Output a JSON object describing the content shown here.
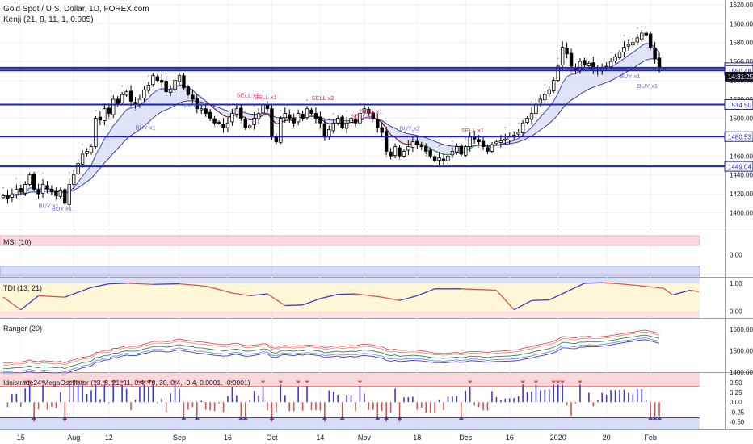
{
  "header": {
    "symbol": "Gold Spot / U.S. Dollar, 1D, FOREX.com",
    "indicator": "Kenji (21, 8, 11, 1, 0.005)"
  },
  "colors": {
    "up": "#ffffff",
    "down": "#000000",
    "level": "#1f1fbf",
    "buy": "#6b6bd6",
    "sell": "#e0306a",
    "fill": "#c9d3f2"
  },
  "chart_data": [
    {
      "type": "candlestick",
      "name": "price",
      "ylim": [
        1380,
        1625
      ],
      "yticks": [
        1400,
        1420,
        1440,
        1460,
        1480,
        1500,
        1520,
        1540,
        1560,
        1580,
        1600,
        1620
      ],
      "x_ticks": [
        {
          "i": 4,
          "label": "15"
        },
        {
          "i": 16,
          "label": "Aug"
        },
        {
          "i": 24,
          "label": "12"
        },
        {
          "i": 40,
          "label": "Sep"
        },
        {
          "i": 51,
          "label": "16"
        },
        {
          "i": 61,
          "label": "Oct"
        },
        {
          "i": 72,
          "label": "14"
        },
        {
          "i": 82,
          "label": "Nov"
        },
        {
          "i": 94,
          "label": "18"
        },
        {
          "i": 105,
          "label": "Dec"
        },
        {
          "i": 115,
          "label": "16"
        },
        {
          "i": 126,
          "label": "2020"
        },
        {
          "i": 137,
          "label": "20"
        },
        {
          "i": 147,
          "label": "Feb"
        }
      ],
      "closes": [
        1418,
        1415,
        1420,
        1425,
        1422,
        1430,
        1440,
        1425,
        1420,
        1430,
        1425,
        1422,
        1418,
        1424,
        1410,
        1430,
        1440,
        1452,
        1462,
        1465,
        1470,
        1500,
        1498,
        1510,
        1505,
        1520,
        1515,
        1525,
        1528,
        1518,
        1515,
        1520,
        1530,
        1535,
        1545,
        1540,
        1538,
        1528,
        1530,
        1540,
        1545,
        1532,
        1525,
        1520,
        1510,
        1510,
        1505,
        1500,
        1495,
        1495,
        1490,
        1495,
        1505,
        1510,
        1500,
        1490,
        1492,
        1500,
        1505,
        1515,
        1510,
        1480,
        1475,
        1500,
        1505,
        1500,
        1495,
        1505,
        1500,
        1510,
        1505,
        1500,
        1495,
        1480,
        1488,
        1495,
        1500,
        1490,
        1495,
        1500,
        1495,
        1505,
        1510,
        1505,
        1500,
        1490,
        1485,
        1465,
        1460,
        1470,
        1460,
        1465,
        1470,
        1475,
        1472,
        1470,
        1465,
        1460,
        1455,
        1458,
        1455,
        1460,
        1465,
        1470,
        1462,
        1470,
        1480,
        1478,
        1475,
        1470,
        1465,
        1472,
        1475,
        1476,
        1478,
        1480,
        1482,
        1485,
        1495,
        1500,
        1505,
        1515,
        1520,
        1525,
        1530,
        1540,
        1555,
        1575,
        1568,
        1555,
        1550,
        1560,
        1556,
        1558,
        1552,
        1550,
        1553,
        1555,
        1560,
        1565,
        1570,
        1575,
        1578,
        1580,
        1585,
        1590,
        1588,
        1575,
        1563,
        1553
      ],
      "levels": [
        {
          "value": 1553.38,
          "label": "1553.38",
          "dark": false
        },
        {
          "value": 1550.48,
          "label": "1550.48",
          "dark": false
        },
        {
          "value": 1514.5,
          "label": "1514.50",
          "dark": false
        },
        {
          "value": 1480.53,
          "label": "1480.53",
          "dark": false
        },
        {
          "value": 1449.04,
          "label": "1449.04",
          "dark": false
        }
      ],
      "last_price_label": "1553.38",
      "clock_label": "14:31:25",
      "signals": [
        {
          "i": 8,
          "text": "BUY x1",
          "side": "buy",
          "value": 1405
        },
        {
          "i": 11,
          "text": "BUY x1",
          "side": "buy",
          "value": 1402
        },
        {
          "i": 30,
          "text": "BUY x1",
          "side": "buy",
          "value": 1488
        },
        {
          "i": 41,
          "text": "BUY x1",
          "side": "buy",
          "value": 1512
        },
        {
          "i": 53,
          "text": "SELL x1",
          "side": "sell",
          "value": 1522
        },
        {
          "i": 57,
          "text": "SELL x1",
          "side": "sell",
          "value": 1520
        },
        {
          "i": 70,
          "text": "SELL x2",
          "side": "sell",
          "value": 1519
        },
        {
          "i": 81,
          "text": "SELL x1",
          "side": "sell",
          "value": 1505
        },
        {
          "i": 79,
          "text": "SELL x1",
          "side": "sell",
          "value": 1500
        },
        {
          "i": 90,
          "text": "BUY x2",
          "side": "buy",
          "value": 1487
        },
        {
          "i": 104,
          "text": "SELL x1",
          "side": "sell",
          "value": 1485
        },
        {
          "i": 140,
          "text": "BUY x1",
          "side": "buy",
          "value": 1542
        },
        {
          "i": 144,
          "text": "BUY x1",
          "side": "buy",
          "value": 1532
        }
      ]
    },
    {
      "type": "band",
      "name": "MSI (10)",
      "ylim": [
        -0.5,
        0.5
      ],
      "yticks": [
        {
          "v": 0,
          "label": "0.00"
        }
      ]
    },
    {
      "type": "line",
      "name": "TDI (13, 21)",
      "ylim": [
        -0.25,
        1.2
      ],
      "yticks": [
        {
          "v": 1,
          "label": "1.00"
        },
        {
          "v": 0,
          "label": "0.00"
        }
      ],
      "points": [
        [
          0,
          0.5
        ],
        [
          4,
          0.05
        ],
        [
          8,
          0.55
        ],
        [
          14,
          0.5
        ],
        [
          20,
          0.85
        ],
        [
          24,
          0.98
        ],
        [
          28,
          1.0
        ],
        [
          34,
          0.96
        ],
        [
          40,
          0.98
        ],
        [
          46,
          0.9
        ],
        [
          52,
          0.65
        ],
        [
          56,
          0.55
        ],
        [
          60,
          0.62
        ],
        [
          64,
          0.2
        ],
        [
          68,
          0.22
        ],
        [
          72,
          0.45
        ],
        [
          76,
          0.6
        ],
        [
          80,
          0.62
        ],
        [
          86,
          0.5
        ],
        [
          90,
          0.38
        ],
        [
          94,
          0.55
        ],
        [
          98,
          0.8
        ],
        [
          104,
          0.8
        ],
        [
          112,
          0.75
        ],
        [
          116,
          0.05
        ],
        [
          120,
          0.38
        ],
        [
          124,
          0.4
        ],
        [
          128,
          0.7
        ],
        [
          132,
          1.0
        ],
        [
          136,
          1.02
        ],
        [
          140,
          0.98
        ],
        [
          144,
          0.92
        ],
        [
          150,
          0.82
        ],
        [
          152,
          0.58
        ],
        [
          156,
          0.75
        ],
        [
          158,
          0.7
        ]
      ]
    },
    {
      "type": "line",
      "name": "Ranger (20)",
      "ylim": [
        1400,
        1650
      ],
      "yticks": [
        {
          "v": 1600,
          "label": "1600.00"
        },
        {
          "v": 1500,
          "label": "1500.00"
        },
        {
          "v": 1400,
          "label": "1400.00"
        }
      ]
    },
    {
      "type": "bar",
      "name": "Idnistrade24 MegaOscillator (13, 8, 21, 11, 0.4, 70, 30, 0.4, -0.4, 0.0001, -0.0001)",
      "ylim": [
        -0.7,
        0.75
      ],
      "yticks": [
        {
          "v": 0.5,
          "label": "0.50"
        },
        {
          "v": 0.25,
          "label": "0.25"
        },
        {
          "v": 0,
          "label": "0.00"
        },
        {
          "v": -0.25,
          "label": "-0.25"
        },
        {
          "v": -0.5,
          "label": "-0.50"
        }
      ]
    }
  ]
}
